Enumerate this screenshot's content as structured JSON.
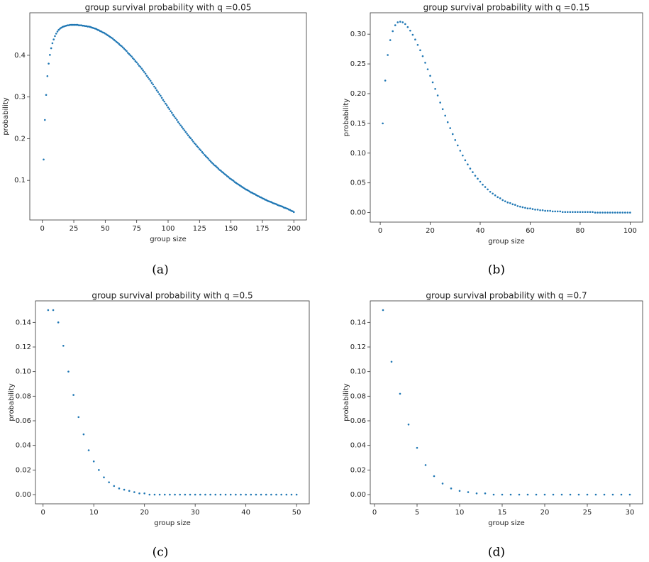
{
  "chart_data": [
    {
      "type": "scatter",
      "title": "group survival probability with q =0.05",
      "caption": "(a)",
      "x_label": "group size",
      "y_label": "probability",
      "color": "#1f77b4",
      "xlim": [
        -10,
        210
      ],
      "ylim": [
        0.005,
        0.502
      ],
      "xticks": [
        0,
        25,
        50,
        75,
        100,
        125,
        150,
        175,
        200
      ],
      "yticks": [
        0.1,
        0.2,
        0.3,
        0.4
      ],
      "x": [
        1,
        2,
        3,
        4,
        5,
        6,
        7,
        8,
        9,
        10,
        11,
        12,
        13,
        14,
        15,
        16,
        17,
        18,
        19,
        20,
        21,
        22,
        23,
        24,
        25,
        26,
        27,
        28,
        29,
        30,
        31,
        32,
        33,
        34,
        35,
        36,
        37,
        38,
        39,
        40,
        41,
        42,
        43,
        44,
        45,
        46,
        47,
        48,
        49,
        50,
        51,
        52,
        53,
        54,
        55,
        56,
        57,
        58,
        59,
        60,
        61,
        62,
        63,
        64,
        65,
        66,
        67,
        68,
        69,
        70,
        71,
        72,
        73,
        74,
        75,
        76,
        77,
        78,
        79,
        80,
        81,
        82,
        83,
        84,
        85,
        86,
        87,
        88,
        89,
        90,
        91,
        92,
        93,
        94,
        95,
        96,
        97,
        98,
        99,
        100,
        101,
        102,
        103,
        104,
        105,
        106,
        107,
        108,
        109,
        110,
        111,
        112,
        113,
        114,
        115,
        116,
        117,
        118,
        119,
        120,
        121,
        122,
        123,
        124,
        125,
        126,
        127,
        128,
        129,
        130,
        131,
        132,
        133,
        134,
        135,
        136,
        137,
        138,
        139,
        140,
        141,
        142,
        143,
        144,
        145,
        146,
        147,
        148,
        149,
        150,
        151,
        152,
        153,
        154,
        155,
        156,
        157,
        158,
        159,
        160,
        161,
        162,
        163,
        164,
        165,
        166,
        167,
        168,
        169,
        170,
        171,
        172,
        173,
        174,
        175,
        176,
        177,
        178,
        179,
        180,
        181,
        182,
        183,
        184,
        185,
        186,
        187,
        188,
        189,
        190,
        191,
        192,
        193,
        194,
        195,
        196,
        197,
        198,
        199,
        200
      ],
      "values": [
        0.15,
        0.245,
        0.305,
        0.35,
        0.38,
        0.401,
        0.417,
        0.429,
        0.438,
        0.446,
        0.452,
        0.457,
        0.461,
        0.464,
        0.466,
        0.468,
        0.469,
        0.47,
        0.471,
        0.472,
        0.472,
        0.473,
        0.473,
        0.473,
        0.473,
        0.473,
        0.473,
        0.473,
        0.472,
        0.472,
        0.472,
        0.471,
        0.471,
        0.47,
        0.47,
        0.469,
        0.469,
        0.468,
        0.467,
        0.466,
        0.465,
        0.464,
        0.463,
        0.461,
        0.46,
        0.458,
        0.457,
        0.455,
        0.454,
        0.452,
        0.45,
        0.448,
        0.446,
        0.444,
        0.442,
        0.44,
        0.437,
        0.435,
        0.432,
        0.43,
        0.427,
        0.424,
        0.422,
        0.419,
        0.416,
        0.413,
        0.41,
        0.406,
        0.403,
        0.4,
        0.397,
        0.393,
        0.39,
        0.386,
        0.383,
        0.379,
        0.375,
        0.372,
        0.368,
        0.364,
        0.36,
        0.356,
        0.351,
        0.347,
        0.343,
        0.339,
        0.334,
        0.33,
        0.325,
        0.321,
        0.316,
        0.312,
        0.307,
        0.303,
        0.298,
        0.293,
        0.289,
        0.284,
        0.28,
        0.275,
        0.271,
        0.266,
        0.262,
        0.257,
        0.253,
        0.249,
        0.245,
        0.24,
        0.236,
        0.232,
        0.228,
        0.224,
        0.22,
        0.216,
        0.212,
        0.208,
        0.204,
        0.201,
        0.197,
        0.193,
        0.189,
        0.186,
        0.182,
        0.179,
        0.175,
        0.172,
        0.168,
        0.165,
        0.161,
        0.158,
        0.155,
        0.152,
        0.148,
        0.145,
        0.142,
        0.139,
        0.136,
        0.134,
        0.131,
        0.128,
        0.125,
        0.123,
        0.12,
        0.118,
        0.115,
        0.113,
        0.11,
        0.108,
        0.105,
        0.103,
        0.101,
        0.099,
        0.096,
        0.094,
        0.092,
        0.09,
        0.088,
        0.086,
        0.084,
        0.082,
        0.08,
        0.078,
        0.077,
        0.075,
        0.073,
        0.071,
        0.07,
        0.068,
        0.067,
        0.065,
        0.063,
        0.062,
        0.06,
        0.059,
        0.057,
        0.056,
        0.054,
        0.053,
        0.051,
        0.05,
        0.049,
        0.048,
        0.046,
        0.045,
        0.044,
        0.043,
        0.041,
        0.04,
        0.039,
        0.038,
        0.037,
        0.035,
        0.034,
        0.033,
        0.032,
        0.03,
        0.029,
        0.027,
        0.026,
        0.024
      ]
    },
    {
      "type": "scatter",
      "title": "group survival probability with q =0.15",
      "caption": "(b)",
      "x_label": "group size",
      "y_label": "probability",
      "color": "#1f77b4",
      "xlim": [
        -4,
        105
      ],
      "ylim": [
        -0.016,
        0.336
      ],
      "xticks": [
        0,
        20,
        40,
        60,
        80,
        100
      ],
      "yticks": [
        {
          "value": 0,
          "label": "0.00"
        },
        {
          "value": 0.05,
          "label": "0.05"
        },
        {
          "value": 0.1,
          "label": "0.10"
        },
        {
          "value": 0.15,
          "label": "0.15"
        },
        {
          "value": 0.2,
          "label": "0.20"
        },
        {
          "value": 0.25,
          "label": "0.25"
        },
        {
          "value": 0.3,
          "label": "0.30"
        }
      ],
      "x": [
        1,
        2,
        3,
        4,
        5,
        6,
        7,
        8,
        9,
        10,
        11,
        12,
        13,
        14,
        15,
        16,
        17,
        18,
        19,
        20,
        21,
        22,
        23,
        24,
        25,
        26,
        27,
        28,
        29,
        30,
        31,
        32,
        33,
        34,
        35,
        36,
        37,
        38,
        39,
        40,
        41,
        42,
        43,
        44,
        45,
        46,
        47,
        48,
        49,
        50,
        51,
        52,
        53,
        54,
        55,
        56,
        57,
        58,
        59,
        60,
        61,
        62,
        63,
        64,
        65,
        66,
        67,
        68,
        69,
        70,
        71,
        72,
        73,
        74,
        75,
        76,
        77,
        78,
        79,
        80,
        81,
        82,
        83,
        84,
        85,
        86,
        87,
        88,
        89,
        90,
        91,
        92,
        93,
        94,
        95,
        96,
        97,
        98,
        99,
        100
      ],
      "values": [
        0.15,
        0.222,
        0.265,
        0.29,
        0.305,
        0.315,
        0.32,
        0.321,
        0.32,
        0.317,
        0.312,
        0.306,
        0.299,
        0.291,
        0.282,
        0.273,
        0.263,
        0.252,
        0.241,
        0.23,
        0.219,
        0.208,
        0.197,
        0.185,
        0.174,
        0.163,
        0.152,
        0.142,
        0.132,
        0.122,
        0.113,
        0.104,
        0.096,
        0.088,
        0.081,
        0.074,
        0.068,
        0.062,
        0.057,
        0.052,
        0.047,
        0.043,
        0.039,
        0.035,
        0.032,
        0.029,
        0.026,
        0.024,
        0.021,
        0.019,
        0.017,
        0.016,
        0.014,
        0.013,
        0.011,
        0.01,
        0.009,
        0.008,
        0.007,
        0.007,
        0.006,
        0.005,
        0.005,
        0.004,
        0.004,
        0.003,
        0.003,
        0.003,
        0.002,
        0.002,
        0.002,
        0.002,
        0.001,
        0.001,
        0.001,
        0.001,
        0.001,
        0.001,
        0.001,
        0.001,
        0.001,
        0.001,
        0.001,
        0.001,
        0.001,
        0,
        0,
        0,
        0,
        0,
        0,
        0,
        0,
        0,
        0,
        0,
        0,
        0,
        0,
        0
      ]
    },
    {
      "type": "scatter",
      "title": "group survival probability with q =0.5",
      "caption": "(c)",
      "x_label": "group size",
      "y_label": "probability",
      "color": "#1f77b4",
      "xlim": [
        -1.5,
        52.5
      ],
      "ylim": [
        -0.0075,
        0.1575
      ],
      "xticks": [
        0,
        10,
        20,
        30,
        40,
        50
      ],
      "yticks": [
        {
          "value": 0,
          "label": "0.00"
        },
        {
          "value": 0.02,
          "label": "0.02"
        },
        {
          "value": 0.04,
          "label": "0.04"
        },
        {
          "value": 0.06,
          "label": "0.06"
        },
        {
          "value": 0.08,
          "label": "0.08"
        },
        {
          "value": 0.1,
          "label": "0.10"
        },
        {
          "value": 0.12,
          "label": "0.12"
        },
        {
          "value": 0.14,
          "label": "0.14"
        }
      ],
      "x": [
        1,
        2,
        3,
        4,
        5,
        6,
        7,
        8,
        9,
        10,
        11,
        12,
        13,
        14,
        15,
        16,
        17,
        18,
        19,
        20,
        21,
        22,
        23,
        24,
        25,
        26,
        27,
        28,
        29,
        30,
        31,
        32,
        33,
        34,
        35,
        36,
        37,
        38,
        39,
        40,
        41,
        42,
        43,
        44,
        45,
        46,
        47,
        48,
        49,
        50
      ],
      "values": [
        0.15,
        0.15,
        0.14,
        0.121,
        0.1,
        0.081,
        0.063,
        0.049,
        0.036,
        0.027,
        0.02,
        0.014,
        0.01,
        0.007,
        0.005,
        0.004,
        0.003,
        0.002,
        0.001,
        0.001,
        0,
        0,
        0,
        0,
        0,
        0,
        0,
        0,
        0,
        0,
        0,
        0,
        0,
        0,
        0,
        0,
        0,
        0,
        0,
        0,
        0,
        0,
        0,
        0,
        0,
        0,
        0,
        0,
        0,
        0
      ]
    },
    {
      "type": "scatter",
      "title": "group survival probability with q =0.7",
      "caption": "(d)",
      "x_label": "group size",
      "y_label": "probability",
      "color": "#1f77b4",
      "xlim": [
        -0.5,
        31.5
      ],
      "ylim": [
        -0.0075,
        0.1575
      ],
      "xticks": [
        0,
        5,
        10,
        15,
        20,
        25,
        30
      ],
      "yticks": [
        {
          "value": 0,
          "label": "0.00"
        },
        {
          "value": 0.02,
          "label": "0.02"
        },
        {
          "value": 0.04,
          "label": "0.04"
        },
        {
          "value": 0.06,
          "label": "0.06"
        },
        {
          "value": 0.08,
          "label": "0.08"
        },
        {
          "value": 0.1,
          "label": "0.10"
        },
        {
          "value": 0.12,
          "label": "0.12"
        },
        {
          "value": 0.14,
          "label": "0.14"
        }
      ],
      "x": [
        1,
        2,
        3,
        4,
        5,
        6,
        7,
        8,
        9,
        10,
        11,
        12,
        13,
        14,
        15,
        16,
        17,
        18,
        19,
        20,
        21,
        22,
        23,
        24,
        25,
        26,
        27,
        28,
        29,
        30
      ],
      "values": [
        0.15,
        0.108,
        0.082,
        0.057,
        0.038,
        0.024,
        0.015,
        0.009,
        0.005,
        0.003,
        0.002,
        0.001,
        0.001,
        0,
        0,
        0,
        0,
        0,
        0,
        0,
        0,
        0,
        0,
        0,
        0,
        0,
        0,
        0,
        0,
        0
      ]
    }
  ]
}
